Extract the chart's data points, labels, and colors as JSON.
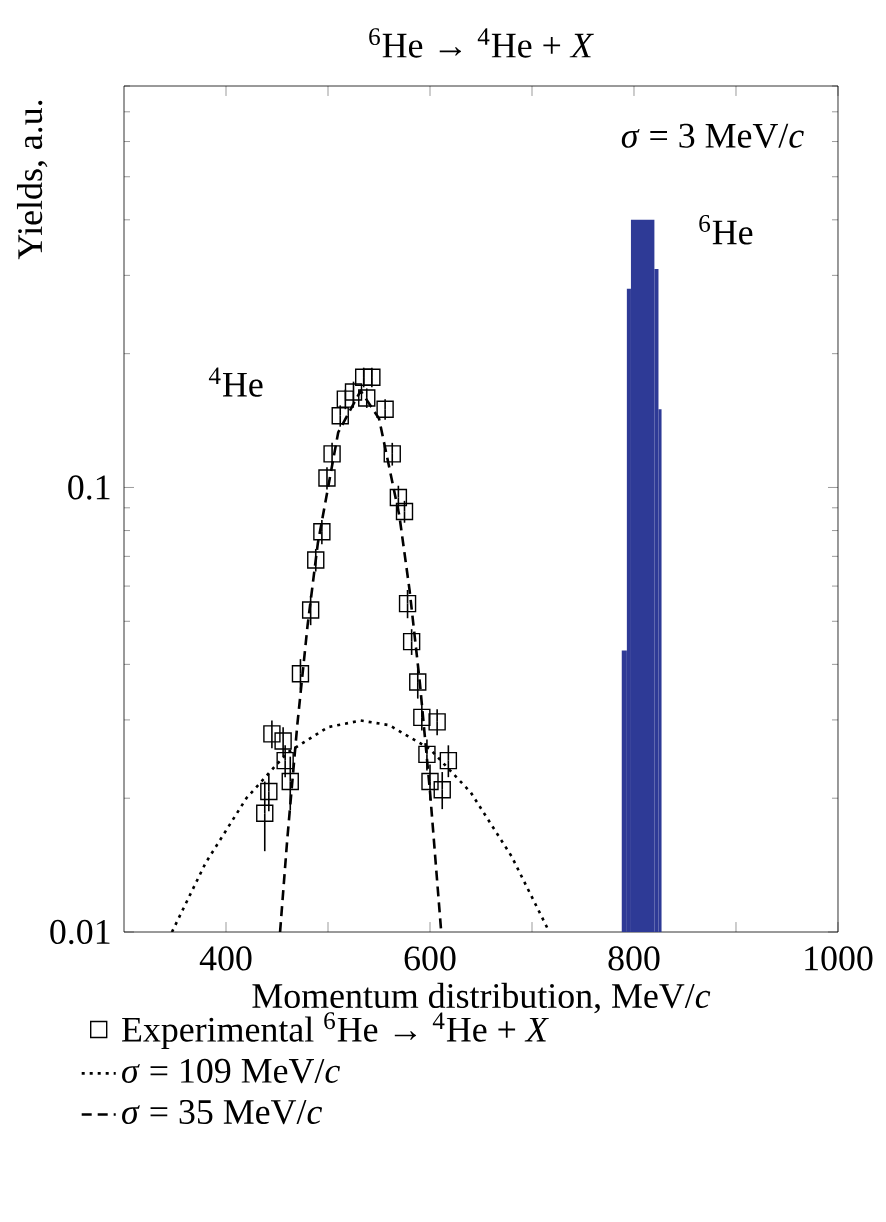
{
  "chart_data": {
    "type": "scatter",
    "title": "$^{6}$He → $^{4}$He + *X*",
    "xlabel": "Momentum distribution, MeV/*c*",
    "ylabel": "Yields, a.u.",
    "xlim": [
      300,
      1000
    ],
    "xticks": [
      400,
      {
        "value": 500,
        "label": null
      },
      600,
      {
        "value": 700,
        "label": null
      },
      800,
      {
        "value": 900,
        "label": null
      },
      1000
    ],
    "ylim": [
      0.01,
      0.8
    ],
    "yticks": [
      0.01,
      0.1
    ],
    "log": true,
    "legend": "bottom",
    "annotations": [
      "*σ* = 3 MeV/*c*",
      "$^{4}$He",
      "$^{6}$He"
    ],
    "series": [
      {
        "name": "Experimental $^{6}$He → $^{4}$He + *X*",
        "type": "scatter",
        "marker": "square",
        "color": "#000000",
        "x": [
          438,
          442,
          445,
          456,
          458,
          463,
          473,
          483,
          488,
          494,
          499,
          504,
          512,
          517,
          525,
          535,
          538,
          543,
          556,
          563,
          569,
          575,
          578,
          582,
          588,
          592,
          597,
          600,
          607,
          612,
          618
        ],
        "values": [
          0.0185,
          0.0207,
          0.0279,
          0.0269,
          0.0243,
          0.0218,
          0.0381,
          0.053,
          0.0687,
          0.0795,
          0.105,
          0.119,
          0.145,
          0.158,
          0.164,
          0.177,
          0.159,
          0.177,
          0.15,
          0.119,
          0.0949,
          0.0883,
          0.0548,
          0.045,
          0.0365,
          0.0304,
          0.0251,
          0.0218,
          0.0297,
          0.0209,
          0.0243
        ],
        "errors": [
          0.0033,
          0.002,
          0.002,
          0.002,
          0.002,
          0.003,
          0.003,
          0.004,
          0.004,
          0.005,
          0.006,
          0.007,
          0.008,
          0.008,
          0.009,
          0.009,
          0.008,
          0.009,
          0.008,
          0.007,
          0.006,
          0.005,
          0.004,
          0.003,
          0.003,
          0.002,
          0.002,
          0.002,
          0.002,
          0.002,
          0.002
        ]
      },
      {
        "name": "*σ* = 109 MeV/*c*",
        "type": "line",
        "line_style": "dotted",
        "marker": "none",
        "color": "#000000",
        "x": [
          347,
          380,
          420,
          460,
          500,
          532,
          560,
          600,
          640,
          680,
          717
        ],
        "values": [
          0.01,
          0.0143,
          0.02,
          0.0253,
          0.0289,
          0.0299,
          0.0292,
          0.0258,
          0.0206,
          0.0148,
          0.01
        ]
      },
      {
        "name": "*σ* = 35 MeV/*c*",
        "type": "line",
        "line_style": "dashed",
        "marker": "none",
        "color": "#000000",
        "x": [
          453,
          460,
          470,
          480,
          490,
          510,
          532,
          550,
          570,
          580,
          590,
          600,
          611
        ],
        "values": [
          0.01,
          0.0161,
          0.0294,
          0.049,
          0.0748,
          0.133,
          0.165,
          0.143,
          0.0863,
          0.0587,
          0.0365,
          0.0207,
          0.01
        ]
      },
      {
        "type": "histogram",
        "color": "#2e3a96",
        "bins": [
          788,
          793,
          797,
          820,
          824,
          827
        ],
        "values": [
          0.043,
          0.28,
          0.4,
          0.31,
          0.15
        ]
      }
    ]
  }
}
